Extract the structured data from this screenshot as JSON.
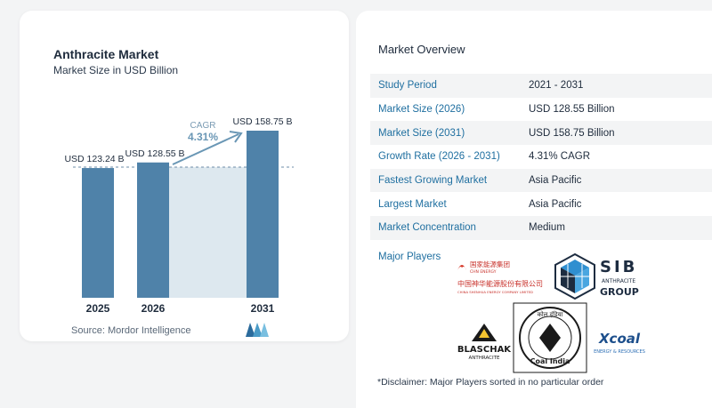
{
  "chart_data": {
    "type": "bar",
    "title": "Anthracite Market",
    "subtitle": "Market Size in USD Billion",
    "categories": [
      "2025",
      "2026",
      "2031"
    ],
    "values": [
      123.24,
      128.55,
      158.75
    ],
    "value_labels": [
      "USD 123.24 B",
      "USD 128.55 B",
      "USD 158.75 B"
    ],
    "cagr_label": "CAGR",
    "cagr_value": "4.31%",
    "bar_color": "#4f82a9",
    "bar_color_top": "#3d7096",
    "forecast_fill": "#dde8ef",
    "source": "Source:  Mordor Intelligence"
  },
  "overview": {
    "title": "Market Overview",
    "rows": [
      {
        "label": "Study Period",
        "value": "2021 - 2031"
      },
      {
        "label": "Market Size (2026)",
        "value": "USD 128.55 Billion"
      },
      {
        "label": "Market Size (2031)",
        "value": "USD 158.75 Billion"
      },
      {
        "label": "Growth Rate (2026 - 2031)",
        "value": "4.31% CAGR"
      },
      {
        "label": "Fastest Growing Market",
        "value": "Asia Pacific"
      },
      {
        "label": "Largest Market",
        "value": "Asia Pacific"
      },
      {
        "label": "Market Concentration",
        "value": "Medium"
      }
    ],
    "major_players_label": "Major Players",
    "disclaimer": "*Disclaimer: Major Players sorted in no particular order"
  },
  "players": {
    "shenhua": {
      "en_top": "国家能源集团",
      "en_sub": "CHN ENERGY",
      "cn": "中国神华能源股份有限公司",
      "en_full": "CHINA SHENHUA ENERGY COMPANY LIMITED"
    },
    "sib": {
      "big": "SIB",
      "mid": "ANTHRACITE",
      "low": "GROUP"
    },
    "blaschak": {
      "name": "BLASCHAK",
      "sub": "ANTHRACITE"
    },
    "coalindia": {
      "hindi": "कोल इंडिया",
      "name": "Coal India"
    },
    "xcoal": {
      "name": "Xcoal",
      "sub": "ENERGY & RESOURCES"
    }
  }
}
